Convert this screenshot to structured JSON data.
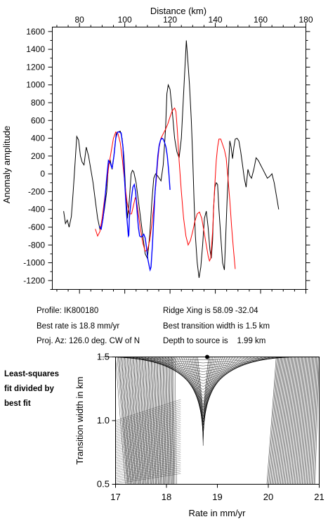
{
  "chart_data": [
    {
      "type": "line",
      "xlabel_top": "Distance (km)",
      "ylabel": "Anomaly amplitude",
      "xlim": [
        68,
        180
      ],
      "ylim": [
        -1300,
        1650
      ],
      "x_ticks": [
        80,
        100,
        120,
        140,
        160,
        180
      ],
      "y_ticks": [
        -1200,
        -1000,
        -800,
        -600,
        -400,
        -200,
        0,
        200,
        400,
        600,
        800,
        1000,
        1200,
        1400,
        1600
      ],
      "grid": false,
      "series": [
        {
          "color": "#000000",
          "points": [
            [
              73,
              -420
            ],
            [
              73.8,
              -560
            ],
            [
              74.6,
              -520
            ],
            [
              75.4,
              -600
            ],
            [
              76.4,
              -480
            ],
            [
              77.2,
              -200
            ],
            [
              78,
              100
            ],
            [
              78.8,
              420
            ],
            [
              79.6,
              380
            ],
            [
              80.4,
              200
            ],
            [
              81.2,
              130
            ],
            [
              82,
              100
            ],
            [
              83,
              300
            ],
            [
              84,
              200
            ],
            [
              85,
              50
            ],
            [
              86,
              -100
            ],
            [
              87,
              -300
            ],
            [
              88,
              -500
            ],
            [
              89,
              -620
            ],
            [
              90,
              -560
            ],
            [
              91,
              -400
            ],
            [
              92,
              -200
            ],
            [
              92.8,
              100
            ],
            [
              93.6,
              150
            ],
            [
              94.4,
              50
            ],
            [
              95.2,
              200
            ],
            [
              96.2,
              450
            ],
            [
              97,
              470
            ],
            [
              98,
              480
            ],
            [
              98.8,
              400
            ],
            [
              99.6,
              200
            ],
            [
              100.4,
              -200
            ],
            [
              101.2,
              -500
            ],
            [
              102,
              -300
            ],
            [
              102.8,
              0
            ],
            [
              103.4,
              40
            ],
            [
              104,
              20
            ],
            [
              105,
              -100
            ],
            [
              106,
              -300
            ],
            [
              107,
              -500
            ],
            [
              108,
              -700
            ],
            [
              109,
              -900
            ],
            [
              110,
              -950
            ],
            [
              111,
              -700
            ],
            [
              112,
              -300
            ],
            [
              112.8,
              -50
            ],
            [
              113.6,
              0
            ],
            [
              114.4,
              -20
            ],
            [
              115.2,
              -50
            ],
            [
              116,
              -80
            ],
            [
              117,
              100
            ],
            [
              118,
              500
            ],
            [
              118.6,
              900
            ],
            [
              119.2,
              1000
            ],
            [
              120,
              950
            ],
            [
              121,
              700
            ],
            [
              122,
              400
            ],
            [
              123,
              250
            ],
            [
              124,
              180
            ],
            [
              125,
              400
            ],
            [
              126,
              900
            ],
            [
              126.8,
              1300
            ],
            [
              127.2,
              1500
            ],
            [
              127.8,
              1300
            ],
            [
              128.6,
              1000
            ],
            [
              129.4,
              600
            ],
            [
              130,
              200
            ],
            [
              130.6,
              -300
            ],
            [
              131.2,
              -700
            ],
            [
              132,
              -1000
            ],
            [
              132.8,
              -1170
            ],
            [
              133.6,
              -1050
            ],
            [
              134.4,
              -800
            ],
            [
              135.2,
              -500
            ],
            [
              136,
              -420
            ],
            [
              136.8,
              -600
            ],
            [
              137.6,
              -850
            ],
            [
              138.2,
              -950
            ],
            [
              138.8,
              -750
            ],
            [
              139.2,
              -400
            ],
            [
              139.8,
              -150
            ],
            [
              140.4,
              -100
            ],
            [
              141,
              -120
            ],
            [
              141.6,
              -400
            ],
            [
              142.4,
              -700
            ],
            [
              143.2,
              -1000
            ],
            [
              144,
              -1080
            ],
            [
              144.6,
              -700
            ],
            [
              145.2,
              -300
            ],
            [
              145.8,
              50
            ],
            [
              146.4,
              370
            ],
            [
              147,
              300
            ],
            [
              147.6,
              170
            ],
            [
              148.2,
              300
            ],
            [
              148.8,
              390
            ],
            [
              149.6,
              400
            ],
            [
              150.4,
              370
            ],
            [
              151.2,
              250
            ],
            [
              152,
              100
            ],
            [
              152.8,
              -50
            ],
            [
              153.6,
              -150
            ],
            [
              154.4,
              50
            ],
            [
              155.2,
              -20
            ],
            [
              156,
              -50
            ],
            [
              157,
              50
            ],
            [
              158,
              180
            ],
            [
              159,
              150
            ],
            [
              160,
              100
            ],
            [
              161,
              50
            ],
            [
              162,
              0
            ],
            [
              163,
              -50
            ],
            [
              164,
              -30
            ],
            [
              165,
              0
            ],
            [
              166,
              -100
            ],
            [
              167,
              -250
            ],
            [
              168,
              -400
            ]
          ]
        },
        {
          "color": "#ff0000",
          "points": [
            [
              87,
              -620
            ],
            [
              88,
              -700
            ],
            [
              89,
              -650
            ],
            [
              90,
              -500
            ],
            [
              91,
              -300
            ],
            [
              92,
              -100
            ],
            [
              93,
              100
            ],
            [
              94,
              250
            ],
            [
              95,
              400
            ],
            [
              96,
              470
            ],
            [
              97,
              450
            ],
            [
              98,
              350
            ],
            [
              99,
              150
            ],
            [
              100,
              -100
            ],
            [
              101,
              -320
            ],
            [
              102,
              -450
            ],
            [
              103,
              -450
            ],
            [
              104,
              -340
            ],
            [
              104.6,
              -270
            ],
            [
              105.2,
              -300
            ],
            [
              106,
              -450
            ],
            [
              107,
              -630
            ],
            [
              108,
              -780
            ],
            [
              109,
              -870
            ],
            [
              110,
              -860
            ],
            [
              111,
              -750
            ],
            [
              112,
              -560
            ],
            [
              113,
              -320
            ],
            [
              114,
              -50
            ],
            [
              114.6,
              150
            ],
            [
              115.2,
              300
            ],
            [
              116,
              400
            ],
            [
              117,
              450
            ],
            [
              118,
              500
            ],
            [
              119,
              560
            ],
            [
              120,
              640
            ],
            [
              121,
              710
            ],
            [
              122,
              740
            ],
            [
              122.6,
              700
            ],
            [
              123.2,
              500
            ],
            [
              124,
              150
            ],
            [
              125,
              -200
            ],
            [
              126,
              -500
            ],
            [
              127,
              -700
            ],
            [
              128,
              -800
            ],
            [
              129,
              -750
            ],
            [
              130,
              -650
            ],
            [
              131,
              -530
            ],
            [
              132,
              -450
            ],
            [
              133,
              -430
            ],
            [
              134,
              -500
            ],
            [
              135,
              -650
            ],
            [
              136,
              -800
            ],
            [
              136.8,
              -920
            ],
            [
              137.4,
              -980
            ],
            [
              138,
              -950
            ],
            [
              138.8,
              -650
            ],
            [
              139.6,
              -200
            ],
            [
              140.4,
              150
            ],
            [
              141,
              300
            ],
            [
              141.6,
              390
            ],
            [
              142.4,
              390
            ],
            [
              143.2,
              330
            ],
            [
              144,
              270
            ],
            [
              144.8,
              180
            ],
            [
              145.6,
              -50
            ],
            [
              146.4,
              -300
            ],
            [
              147.2,
              -600
            ],
            [
              148,
              -850
            ],
            [
              148.8,
              -1070
            ]
          ]
        },
        {
          "color": "#0000ff",
          "points": [
            [
              88.8,
              -590
            ],
            [
              89.6,
              -620
            ],
            [
              90.4,
              -500
            ],
            [
              91.2,
              -300
            ],
            [
              92,
              -50
            ],
            [
              92.8,
              150
            ],
            [
              93.6,
              120
            ],
            [
              94.4,
              60
            ],
            [
              95.2,
              200
            ],
            [
              96,
              400
            ],
            [
              96.8,
              470
            ],
            [
              97.6,
              470
            ],
            [
              98.4,
              460
            ],
            [
              99.2,
              300
            ],
            [
              100,
              -100
            ],
            [
              100.8,
              -450
            ],
            [
              101.6,
              -700
            ],
            [
              101.8,
              -690
            ],
            [
              102,
              -500
            ],
            [
              102.8,
              -300
            ],
            [
              103.6,
              -150
            ],
            [
              104.2,
              -120
            ],
            [
              104.8,
              -200
            ],
            [
              105.4,
              -400
            ],
            [
              106,
              -600
            ],
            [
              106.6,
              -700
            ],
            [
              107.2,
              -710
            ],
            [
              107.8,
              -700
            ],
            [
              108.4,
              -680
            ],
            [
              109,
              -720
            ],
            [
              109.6,
              -830
            ],
            [
              110.2,
              -960
            ],
            [
              110.8,
              -1040
            ],
            [
              111.2,
              -1080
            ],
            [
              111.6,
              -1050
            ],
            [
              112.2,
              -800
            ],
            [
              112.8,
              -500
            ],
            [
              113.4,
              -200
            ],
            [
              114,
              0
            ],
            [
              114.6,
              200
            ],
            [
              115.2,
              320
            ],
            [
              115.8,
              380
            ],
            [
              116.4,
              400
            ],
            [
              117,
              390
            ],
            [
              117.6,
              350
            ],
            [
              118.2,
              300
            ],
            [
              118.8,
              200
            ],
            [
              119.4,
              30
            ],
            [
              120,
              -180
            ]
          ]
        }
      ]
    },
    {
      "type": "contour",
      "xlabel": "Rate in mm/yr",
      "ylabel": "Transition width in km",
      "xlim": [
        17,
        21
      ],
      "ylim": [
        0.5,
        1.5
      ],
      "x_ticks": [
        17,
        18,
        19,
        20,
        21
      ],
      "y_ticks": [
        0.5,
        1.0,
        1.5
      ],
      "grid": false,
      "best_fit_marker": {
        "x": 18.8,
        "y": 1.5
      }
    }
  ],
  "info": {
    "profile": "Profile: IK800180",
    "best_rate": "Best rate is 18.8 mm/yr",
    "proj_az": "Proj. Az: 126.0 deg. CW of N",
    "ridge_xing": "Ridge Xing is 58.09 -32.04",
    "best_width": "Best transition width is 1.5 km",
    "depth": "Depth to source is    1.99 km"
  },
  "side_label": {
    "line1": "Least-squares",
    "line2": "fit divided by",
    "line3": "best fit"
  }
}
